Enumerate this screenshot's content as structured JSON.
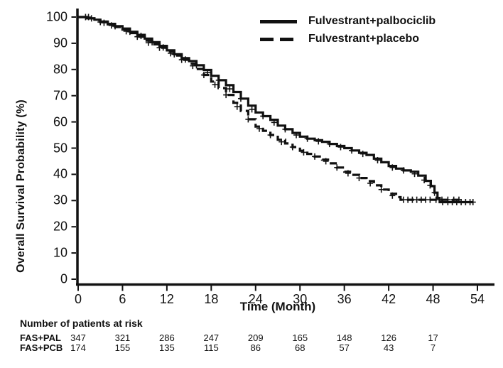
{
  "colors": {
    "ink": "#111111",
    "background": "#ffffff"
  },
  "legend": {
    "items": [
      {
        "label": "Fulvestrant+palbociclib",
        "line_style": "solid"
      },
      {
        "label": "Fulvestrant+placebo",
        "line_style": "dashed"
      }
    ]
  },
  "risk_table": {
    "title": "Number of patients at risk",
    "rows": [
      {
        "label": "FAS+PAL",
        "counts": [
          347,
          321,
          286,
          247,
          209,
          165,
          148,
          126,
          17
        ]
      },
      {
        "label": "FAS+PCB",
        "counts": [
          174,
          155,
          135,
          115,
          86,
          68,
          57,
          43,
          7
        ]
      }
    ]
  },
  "chart_data": {
    "type": "line",
    "subtype": "kaplan-meier-step",
    "title": "",
    "xlabel": "Time (Month)",
    "ylabel": "Overall Survival Probability (%)",
    "xlim": [
      0,
      54
    ],
    "ylim": [
      0,
      100
    ],
    "x_ticks": [
      0,
      6,
      12,
      18,
      24,
      30,
      36,
      42,
      48,
      54
    ],
    "y_ticks": [
      100,
      90,
      80,
      70,
      60,
      50,
      40,
      30,
      20,
      10,
      0
    ],
    "grid": false,
    "legend_position": "top-right",
    "series": [
      {
        "id": "placebo",
        "name": "Fulvestrant+placebo",
        "line_style": "dashed",
        "points": [
          [
            0,
            100
          ],
          [
            1.2,
            99.5
          ],
          [
            2.2,
            98.9
          ],
          [
            3,
            98.1
          ],
          [
            4,
            97.2
          ],
          [
            5,
            96.2
          ],
          [
            6,
            95.2
          ],
          [
            7,
            93.9
          ],
          [
            8,
            92.5
          ],
          [
            9,
            91
          ],
          [
            10,
            89.6
          ],
          [
            11,
            88.3
          ],
          [
            12,
            86.9
          ],
          [
            13,
            85.3
          ],
          [
            14,
            83.7
          ],
          [
            15,
            82.2
          ],
          [
            16,
            80.2
          ],
          [
            17,
            77.9
          ],
          [
            18,
            75.4
          ],
          [
            19,
            72.9
          ],
          [
            20,
            70.3
          ],
          [
            21,
            67.3
          ],
          [
            22,
            64.2
          ],
          [
            23,
            61
          ],
          [
            24,
            58.2
          ],
          [
            25,
            56.6
          ],
          [
            26,
            55
          ],
          [
            27,
            53.2
          ],
          [
            28,
            51.8
          ],
          [
            29,
            50.4
          ],
          [
            30,
            49
          ],
          [
            31,
            47.8
          ],
          [
            32,
            46.8
          ],
          [
            33,
            45.6
          ],
          [
            34,
            44.2
          ],
          [
            35,
            42.6
          ],
          [
            36,
            41
          ],
          [
            37,
            39.8
          ],
          [
            38,
            38.6
          ],
          [
            39,
            37.4
          ],
          [
            40,
            35.8
          ],
          [
            41,
            34.2
          ],
          [
            42,
            32.6
          ],
          [
            43,
            31.3
          ],
          [
            43.6,
            30.3
          ],
          [
            51.6,
            30.3
          ]
        ],
        "censor_marks": [
          [
            1.4,
            100
          ],
          [
            3,
            98.1
          ],
          [
            4.5,
            96.8
          ],
          [
            6.5,
            94.6
          ],
          [
            8,
            92.5
          ],
          [
            9.5,
            90.2
          ],
          [
            11,
            88.3
          ],
          [
            12.5,
            86.2
          ],
          [
            14,
            83.7
          ],
          [
            15.5,
            81.4
          ],
          [
            17,
            77.9
          ],
          [
            18.5,
            74.2
          ],
          [
            20,
            70.3
          ],
          [
            21.5,
            65.8
          ],
          [
            23,
            61
          ],
          [
            24.5,
            57.4
          ],
          [
            26,
            55
          ],
          [
            27.5,
            52.4
          ],
          [
            29,
            50.4
          ],
          [
            30.5,
            48.4
          ],
          [
            32,
            46.8
          ],
          [
            33.5,
            45
          ],
          [
            35,
            42.6
          ],
          [
            36.5,
            40.4
          ],
          [
            38,
            38.6
          ],
          [
            39.5,
            36.6
          ],
          [
            41,
            34.2
          ],
          [
            42.5,
            31.9
          ],
          [
            44,
            30.3
          ],
          [
            44.6,
            30.3
          ],
          [
            45.2,
            30.3
          ],
          [
            45.8,
            30.3
          ],
          [
            46.4,
            30.3
          ],
          [
            47,
            30.3
          ],
          [
            47.6,
            30.3
          ],
          [
            48.4,
            30.3
          ],
          [
            49.2,
            30.3
          ],
          [
            50,
            30.3
          ],
          [
            50.8,
            30.3
          ],
          [
            51.5,
            30.3
          ]
        ]
      },
      {
        "id": "palbociclib",
        "name": "Fulvestrant+palbociclib",
        "line_style": "solid",
        "points": [
          [
            0,
            100
          ],
          [
            1.2,
            99.5
          ],
          [
            2.2,
            99
          ],
          [
            3,
            98.3
          ],
          [
            4,
            97.4
          ],
          [
            5,
            96.5
          ],
          [
            6,
            95.6
          ],
          [
            7,
            94.4
          ],
          [
            8,
            93.2
          ],
          [
            9,
            91.8
          ],
          [
            10,
            90.4
          ],
          [
            11,
            89
          ],
          [
            12,
            87.3
          ],
          [
            13,
            85.8
          ],
          [
            14,
            84.3
          ],
          [
            15,
            83.2
          ],
          [
            16,
            81.6
          ],
          [
            17,
            79.8
          ],
          [
            18,
            77.6
          ],
          [
            19,
            75.9
          ],
          [
            20,
            74
          ],
          [
            21,
            71.4
          ],
          [
            22,
            68.9
          ],
          [
            23,
            66.2
          ],
          [
            24,
            63.6
          ],
          [
            25,
            62.2
          ],
          [
            26,
            60.8
          ],
          [
            27,
            58.6
          ],
          [
            28,
            57.2
          ],
          [
            29,
            55.8
          ],
          [
            30,
            54.4
          ],
          [
            31,
            53.6
          ],
          [
            32,
            53
          ],
          [
            33,
            52.4
          ],
          [
            34,
            51.6
          ],
          [
            35,
            50.8
          ],
          [
            36,
            50
          ],
          [
            37,
            49.1
          ],
          [
            38,
            48.2
          ],
          [
            39,
            47.4
          ],
          [
            40,
            46
          ],
          [
            41,
            44.6
          ],
          [
            42,
            43.2
          ],
          [
            43,
            42.2
          ],
          [
            44,
            41.5
          ],
          [
            45,
            41
          ],
          [
            46,
            39.5
          ],
          [
            47,
            37.5
          ],
          [
            47.7,
            35.5
          ],
          [
            48.2,
            33
          ],
          [
            48.6,
            31
          ],
          [
            48.9,
            29.4
          ],
          [
            53.4,
            29.4
          ]
        ],
        "censor_marks": [
          [
            1,
            100
          ],
          [
            1.8,
            99.5
          ],
          [
            3.5,
            97.8
          ],
          [
            5,
            96.5
          ],
          [
            7,
            94.4
          ],
          [
            8.5,
            92.8
          ],
          [
            10,
            90.4
          ],
          [
            11.5,
            88.4
          ],
          [
            13,
            85.8
          ],
          [
            14.5,
            83.8
          ],
          [
            16,
            81.6
          ],
          [
            17.5,
            78.8
          ],
          [
            19,
            75.9
          ],
          [
            20.5,
            72.6
          ],
          [
            22,
            68.9
          ],
          [
            23.5,
            64.8
          ],
          [
            25,
            62.2
          ],
          [
            26.5,
            59.8
          ],
          [
            28,
            57.2
          ],
          [
            29.5,
            55
          ],
          [
            31,
            53.6
          ],
          [
            32.5,
            52.6
          ],
          [
            34,
            51.6
          ],
          [
            35.5,
            50.4
          ],
          [
            37,
            49.1
          ],
          [
            38.5,
            47.8
          ],
          [
            40.5,
            45.4
          ],
          [
            42.5,
            42.6
          ],
          [
            44,
            41.5
          ],
          [
            45.5,
            40.2
          ],
          [
            46.8,
            37.8
          ],
          [
            47.6,
            35.8
          ],
          [
            48.2,
            33
          ],
          [
            49.3,
            29.4
          ],
          [
            50,
            29.4
          ],
          [
            50.6,
            29.4
          ],
          [
            51.2,
            29.4
          ],
          [
            51.8,
            29.4
          ],
          [
            52.4,
            29.4
          ],
          [
            53,
            29.4
          ],
          [
            53.4,
            29.4
          ]
        ]
      }
    ]
  }
}
